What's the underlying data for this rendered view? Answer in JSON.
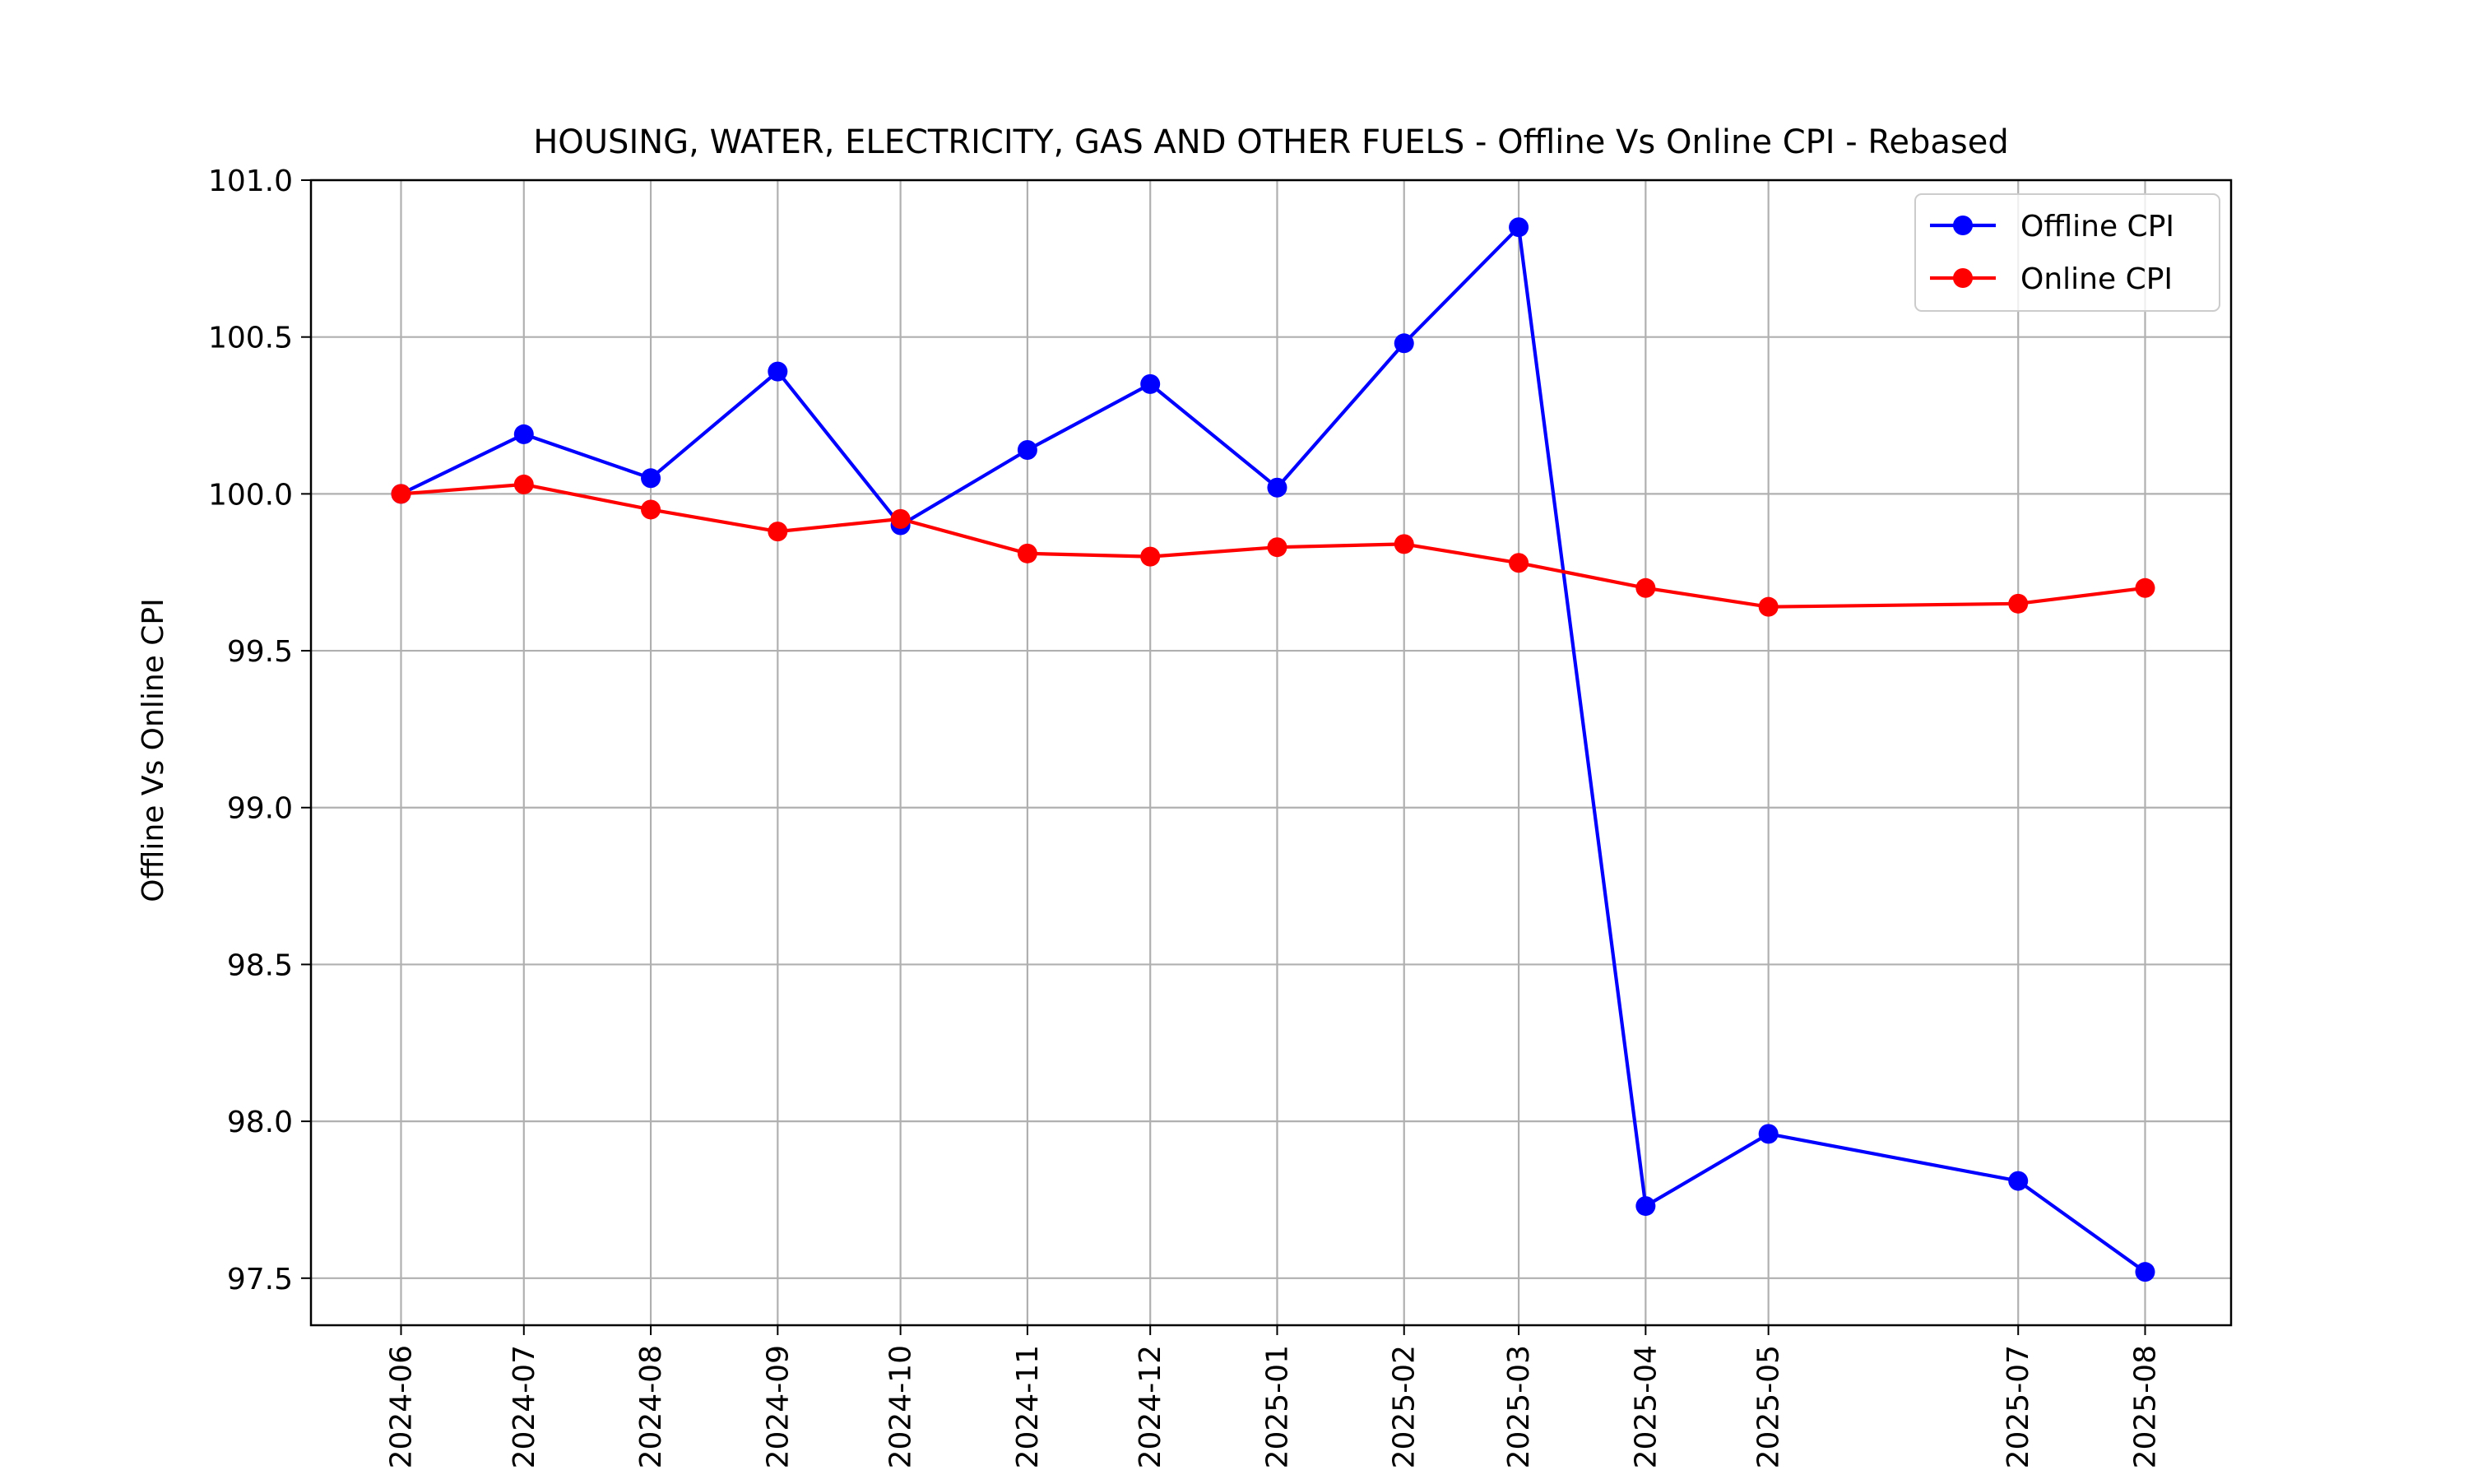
{
  "chart_data": {
    "type": "line",
    "title": "HOUSING, WATER, ELECTRICITY, GAS AND OTHER FUELS - Offline Vs Online CPI - Rebased",
    "xlabel": "",
    "ylabel": "Offline Vs Online CPI",
    "ylim": [
      97.35,
      101.0
    ],
    "yticks": [
      "97.5",
      "98.0",
      "98.5",
      "99.0",
      "99.5",
      "100.0",
      "100.5",
      "101.0"
    ],
    "x": [
      "2024-06",
      "2024-07",
      "2024-08",
      "2024-09",
      "2024-10",
      "2024-11",
      "2024-12",
      "2025-01",
      "2025-02",
      "2025-03",
      "2025-04",
      "2025-05",
      "2025-07",
      "2025-08"
    ],
    "xlim": [
      "2024-05-10",
      "2025-08-22"
    ],
    "grid": true,
    "legend": "top-right",
    "series": [
      {
        "name": "Offline CPI",
        "color": "#0000ff",
        "values": [
          100.0,
          100.19,
          100.05,
          100.39,
          99.9,
          100.14,
          100.35,
          100.02,
          100.48,
          100.85,
          97.73,
          97.96,
          97.81,
          97.52
        ]
      },
      {
        "name": "Online CPI",
        "color": "#ff0000",
        "values": [
          100.0,
          100.03,
          99.95,
          99.88,
          99.92,
          99.81,
          99.8,
          99.83,
          99.84,
          99.78,
          99.7,
          99.64,
          99.65,
          99.7
        ]
      }
    ]
  }
}
